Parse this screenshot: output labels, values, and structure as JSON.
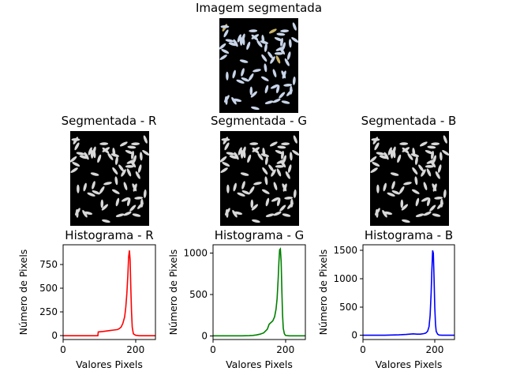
{
  "images": [
    {
      "title": "Imagem segmentada",
      "tint": "#c8d4e8"
    },
    {
      "title": "Segmentada - R",
      "tint": "#d8d8d8"
    },
    {
      "title": "Segmentada - G",
      "tint": "#d8d8d8"
    },
    {
      "title": "Segmentada - B",
      "tint": "#d8d8d8"
    }
  ],
  "chart_data": [
    {
      "type": "line",
      "title": "Histograma - R",
      "xlabel": "Valores Pixels",
      "ylabel": "Número de Pixels",
      "xlim": [
        0,
        255
      ],
      "ylim": [
        -40,
        960
      ],
      "xticks": [
        0,
        200
      ],
      "yticks": [
        0,
        250,
        500,
        750
      ],
      "series": [
        {
          "color": "#ff0000",
          "x": [
            0,
            20,
            40,
            60,
            80,
            96,
            97,
            110,
            120,
            130,
            140,
            150,
            155,
            160,
            165,
            170,
            173,
            176,
            179,
            181,
            183,
            185,
            187,
            189,
            191,
            194,
            200,
            210,
            220,
            240,
            255
          ],
          "y": [
            0,
            0,
            0,
            0,
            0,
            0,
            40,
            45,
            50,
            55,
            60,
            65,
            75,
            90,
            130,
            200,
            300,
            450,
            650,
            830,
            900,
            800,
            500,
            250,
            90,
            20,
            5,
            0,
            0,
            0,
            0
          ]
        }
      ]
    },
    {
      "type": "line",
      "title": "Histograma - G",
      "xlabel": "Valores Pixels",
      "ylabel": "Número de Pixels",
      "xlim": [
        0,
        255
      ],
      "ylim": [
        -45,
        1100
      ],
      "xticks": [
        0,
        200
      ],
      "yticks": [
        0,
        500,
        1000
      ],
      "series": [
        {
          "color": "#008000",
          "x": [
            0,
            20,
            40,
            60,
            80,
            100,
            110,
            120,
            130,
            140,
            150,
            155,
            160,
            165,
            170,
            174,
            177,
            180,
            182,
            184,
            186,
            188,
            190,
            192,
            194,
            197,
            200,
            210,
            220,
            240,
            255
          ],
          "y": [
            0,
            0,
            0,
            0,
            0,
            2,
            5,
            10,
            20,
            35,
            80,
            140,
            160,
            180,
            230,
            320,
            450,
            700,
            900,
            1040,
            1050,
            900,
            550,
            250,
            90,
            25,
            5,
            0,
            0,
            0,
            0
          ]
        }
      ]
    },
    {
      "type": "line",
      "title": "Histograma - B",
      "xlabel": "Valores Pixels",
      "ylabel": "Número de Pixels",
      "xlim": [
        0,
        255
      ],
      "ylim": [
        -75,
        1600
      ],
      "xticks": [
        0,
        200
      ],
      "yticks": [
        0,
        500,
        1000,
        1500
      ],
      "series": [
        {
          "color": "#0000ff",
          "x": [
            0,
            20,
            40,
            60,
            80,
            100,
            110,
            120,
            130,
            140,
            150,
            160,
            170,
            175,
            180,
            184,
            187,
            190,
            192,
            194,
            196,
            198,
            200,
            202,
            204,
            208,
            212,
            220,
            240,
            255
          ],
          "y": [
            0,
            0,
            0,
            0,
            5,
            8,
            12,
            15,
            20,
            25,
            20,
            20,
            30,
            40,
            70,
            150,
            350,
            750,
            1150,
            1500,
            1450,
            1000,
            500,
            200,
            70,
            20,
            5,
            0,
            0,
            0
          ]
        }
      ]
    }
  ]
}
